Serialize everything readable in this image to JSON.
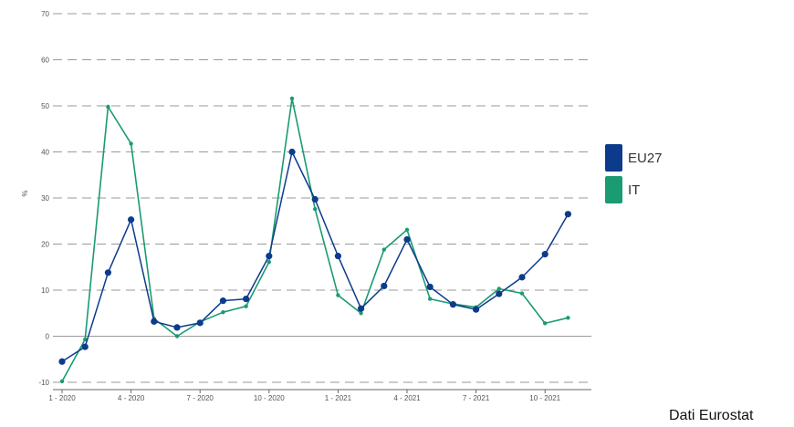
{
  "chart_data": {
    "type": "line",
    "ylabel": "%",
    "ylim": [
      -10,
      70
    ],
    "yticks": [
      "70",
      "60",
      "50",
      "40",
      "30",
      "20",
      "10",
      "0",
      "-10"
    ],
    "ytick_values": [
      70,
      60,
      50,
      40,
      30,
      20,
      10,
      0,
      -10
    ],
    "xtick_labels": [
      "1 - 2020",
      "4 - 2020",
      "7 - 2020",
      "10 - 2020",
      "1 - 2021",
      "4 - 2021",
      "7 - 2021",
      "10 - 2021"
    ],
    "xtick_indices": [
      0,
      3,
      6,
      9,
      12,
      15,
      18,
      21
    ],
    "x": [
      "1-2020",
      "2-2020",
      "3-2020",
      "4-2020",
      "5-2020",
      "6-2020",
      "7-2020",
      "8-2020",
      "9-2020",
      "10-2020",
      "11-2020",
      "12-2020",
      "1-2021",
      "2-2021",
      "3-2021",
      "4-2021",
      "5-2021",
      "6-2021",
      "7-2021",
      "8-2021",
      "9-2021",
      "10-2021",
      "11-2021"
    ],
    "series": [
      {
        "name": "EU27",
        "color": "#0d3b8c",
        "values": [
          -5.5,
          -2.3,
          13.8,
          25.3,
          3.2,
          1.9,
          2.9,
          7.7,
          8.1,
          17.4,
          40.0,
          29.7,
          17.4,
          6.0,
          10.9,
          21.0,
          10.7,
          6.9,
          5.8,
          9.2,
          12.8,
          17.8,
          26.5
        ]
      },
      {
        "name": "IT",
        "color": "#1a9b72",
        "values": [
          -9.8,
          -0.7,
          49.8,
          41.8,
          3.8,
          0.0,
          3.1,
          5.2,
          6.5,
          16.1,
          51.6,
          27.6,
          8.9,
          5.0,
          18.8,
          23.1,
          8.1,
          7.0,
          6.3,
          10.3,
          9.3,
          2.8,
          4.0
        ]
      }
    ],
    "grid": true,
    "legend_position": "right"
  },
  "legend": [
    {
      "label": "EU27",
      "color": "#0d3b8c"
    },
    {
      "label": "IT",
      "color": "#1a9b72"
    }
  ],
  "source_note": "Dati Eurostat"
}
